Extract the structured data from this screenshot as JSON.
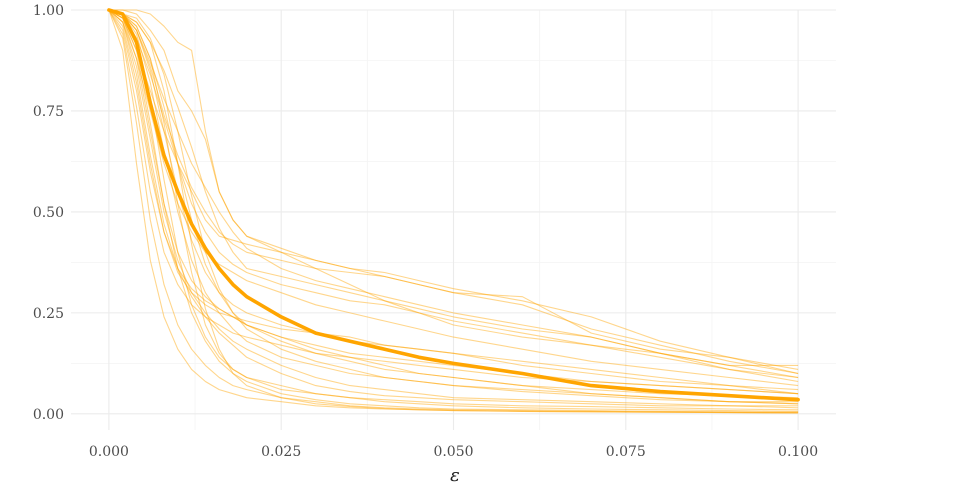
{
  "chart_data": {
    "type": "line",
    "title": "",
    "xlabel": "ε",
    "ylabel": "",
    "xlim": [
      -0.0055,
      0.1055
    ],
    "ylim": [
      -0.04,
      1.0
    ],
    "x_ticks": [
      "0.000",
      "0.025",
      "0.050",
      "0.075",
      "0.100"
    ],
    "x_tick_values": [
      0,
      0.025,
      0.05,
      0.075,
      0.1
    ],
    "y_ticks": [
      "0.00",
      "0.25",
      "0.50",
      "0.75",
      "1.00"
    ],
    "y_tick_values": [
      0,
      0.25,
      0.5,
      0.75,
      1.0
    ],
    "grid": true,
    "colors": {
      "mean": "#FFA500",
      "individual": "#FFA500",
      "grid": "#EBEBEB"
    },
    "x": [
      0.0,
      0.002,
      0.004,
      0.006,
      0.008,
      0.01,
      0.012,
      0.014,
      0.016,
      0.018,
      0.02,
      0.025,
      0.03,
      0.035,
      0.04,
      0.045,
      0.05,
      0.06,
      0.07,
      0.08,
      0.09,
      0.1
    ],
    "mean_series": {
      "values": [
        1.0,
        0.99,
        0.92,
        0.77,
        0.64,
        0.55,
        0.47,
        0.41,
        0.36,
        0.32,
        0.29,
        0.24,
        0.2,
        0.18,
        0.16,
        0.14,
        0.125,
        0.1,
        0.07,
        0.055,
        0.045,
        0.035
      ]
    },
    "series": [
      {
        "values": [
          1.0,
          1.0,
          1.0,
          0.99,
          0.96,
          0.92,
          0.9,
          0.7,
          0.55,
          0.48,
          0.44,
          0.41,
          0.38,
          0.36,
          0.34,
          0.32,
          0.3,
          0.29,
          0.2,
          0.16,
          0.14,
          0.11
        ]
      },
      {
        "values": [
          1.0,
          1.0,
          0.99,
          0.95,
          0.9,
          0.8,
          0.75,
          0.68,
          0.55,
          0.48,
          0.44,
          0.4,
          0.36,
          0.32,
          0.28,
          0.25,
          0.22,
          0.19,
          0.17,
          0.15,
          0.12,
          0.12
        ]
      },
      {
        "values": [
          1.0,
          0.98,
          0.9,
          0.8,
          0.7,
          0.62,
          0.55,
          0.48,
          0.44,
          0.43,
          0.42,
          0.4,
          0.38,
          0.36,
          0.35,
          0.33,
          0.31,
          0.28,
          0.24,
          0.18,
          0.14,
          0.1
        ]
      },
      {
        "values": [
          1.0,
          0.99,
          0.95,
          0.86,
          0.74,
          0.64,
          0.56,
          0.5,
          0.45,
          0.42,
          0.4,
          0.38,
          0.36,
          0.35,
          0.34,
          0.32,
          0.3,
          0.27,
          0.21,
          0.17,
          0.13,
          0.1
        ]
      },
      {
        "values": [
          1.0,
          0.99,
          0.97,
          0.92,
          0.85,
          0.76,
          0.66,
          0.55,
          0.46,
          0.4,
          0.36,
          0.34,
          0.32,
          0.3,
          0.28,
          0.26,
          0.24,
          0.21,
          0.19,
          0.15,
          0.11,
          0.08
        ]
      },
      {
        "values": [
          1.0,
          0.98,
          0.93,
          0.84,
          0.73,
          0.62,
          0.52,
          0.45,
          0.4,
          0.37,
          0.35,
          0.32,
          0.3,
          0.28,
          0.27,
          0.25,
          0.23,
          0.2,
          0.17,
          0.14,
          0.11,
          0.09
        ]
      },
      {
        "values": [
          1.0,
          0.97,
          0.88,
          0.75,
          0.62,
          0.52,
          0.45,
          0.4,
          0.37,
          0.35,
          0.33,
          0.3,
          0.27,
          0.25,
          0.23,
          0.21,
          0.19,
          0.16,
          0.13,
          0.11,
          0.09,
          0.07
        ]
      },
      {
        "values": [
          1.0,
          0.99,
          0.95,
          0.85,
          0.7,
          0.55,
          0.43,
          0.35,
          0.3,
          0.27,
          0.25,
          0.22,
          0.2,
          0.19,
          0.17,
          0.16,
          0.15,
          0.13,
          0.11,
          0.09,
          0.07,
          0.06
        ]
      },
      {
        "values": [
          1.0,
          0.96,
          0.82,
          0.62,
          0.45,
          0.35,
          0.3,
          0.27,
          0.25,
          0.24,
          0.23,
          0.21,
          0.2,
          0.18,
          0.17,
          0.16,
          0.15,
          0.12,
          0.1,
          0.08,
          0.07,
          0.05
        ]
      },
      {
        "values": [
          1.0,
          0.99,
          0.96,
          0.88,
          0.76,
          0.62,
          0.48,
          0.37,
          0.3,
          0.25,
          0.22,
          0.19,
          0.17,
          0.15,
          0.14,
          0.13,
          0.12,
          0.1,
          0.08,
          0.07,
          0.06,
          0.05
        ]
      },
      {
        "values": [
          1.0,
          0.95,
          0.8,
          0.6,
          0.45,
          0.36,
          0.31,
          0.28,
          0.26,
          0.24,
          0.22,
          0.18,
          0.15,
          0.13,
          0.11,
          0.1,
          0.09,
          0.07,
          0.05,
          0.04,
          0.03,
          0.025
        ]
      },
      {
        "values": [
          1.0,
          0.99,
          0.94,
          0.82,
          0.65,
          0.5,
          0.38,
          0.3,
          0.25,
          0.21,
          0.18,
          0.14,
          0.12,
          0.1,
          0.09,
          0.08,
          0.07,
          0.06,
          0.05,
          0.04,
          0.03,
          0.03
        ]
      },
      {
        "values": [
          1.0,
          0.97,
          0.86,
          0.68,
          0.5,
          0.38,
          0.3,
          0.25,
          0.21,
          0.18,
          0.16,
          0.12,
          0.09,
          0.07,
          0.06,
          0.05,
          0.04,
          0.035,
          0.03,
          0.025,
          0.02,
          0.02
        ]
      },
      {
        "values": [
          1.0,
          0.99,
          0.96,
          0.88,
          0.72,
          0.52,
          0.35,
          0.22,
          0.15,
          0.11,
          0.09,
          0.06,
          0.05,
          0.04,
          0.035,
          0.03,
          0.025,
          0.02,
          0.018,
          0.015,
          0.012,
          0.01
        ]
      },
      {
        "values": [
          1.0,
          0.98,
          0.9,
          0.72,
          0.52,
          0.36,
          0.25,
          0.18,
          0.13,
          0.1,
          0.08,
          0.05,
          0.035,
          0.025,
          0.02,
          0.015,
          0.012,
          0.01,
          0.008,
          0.006,
          0.005,
          0.004
        ]
      },
      {
        "values": [
          1.0,
          0.93,
          0.72,
          0.48,
          0.32,
          0.22,
          0.16,
          0.12,
          0.09,
          0.07,
          0.06,
          0.04,
          0.03,
          0.02,
          0.015,
          0.012,
          0.01,
          0.008,
          0.006,
          0.005,
          0.004,
          0.003
        ]
      },
      {
        "values": [
          1.0,
          0.99,
          0.97,
          0.92,
          0.8,
          0.62,
          0.42,
          0.26,
          0.16,
          0.1,
          0.07,
          0.04,
          0.025,
          0.018,
          0.013,
          0.01,
          0.008,
          0.006,
          0.005,
          0.004,
          0.003,
          0.002
        ]
      },
      {
        "values": [
          1.0,
          0.9,
          0.62,
          0.38,
          0.24,
          0.16,
          0.11,
          0.08,
          0.06,
          0.05,
          0.04,
          0.03,
          0.02,
          0.015,
          0.012,
          0.01,
          0.008,
          0.006,
          0.005,
          0.004,
          0.003,
          0.002
        ]
      },
      {
        "values": [
          1.0,
          0.99,
          0.93,
          0.78,
          0.58,
          0.4,
          0.27,
          0.19,
          0.14,
          0.11,
          0.09,
          0.07,
          0.05,
          0.04,
          0.03,
          0.025,
          0.02,
          0.015,
          0.012,
          0.01,
          0.008,
          0.006
        ]
      },
      {
        "values": [
          1.0,
          0.98,
          0.88,
          0.7,
          0.52,
          0.4,
          0.33,
          0.29,
          0.26,
          0.24,
          0.22,
          0.19,
          0.16,
          0.14,
          0.12,
          0.1,
          0.09,
          0.07,
          0.06,
          0.05,
          0.045,
          0.04
        ]
      },
      {
        "values": [
          1.0,
          0.99,
          0.95,
          0.87,
          0.78,
          0.7,
          0.62,
          0.56,
          0.5,
          0.45,
          0.41,
          0.36,
          0.33,
          0.31,
          0.29,
          0.27,
          0.25,
          0.22,
          0.19,
          0.15,
          0.12,
          0.09
        ]
      },
      {
        "values": [
          1.0,
          0.97,
          0.84,
          0.64,
          0.47,
          0.36,
          0.29,
          0.24,
          0.2,
          0.17,
          0.14,
          0.1,
          0.07,
          0.055,
          0.045,
          0.04,
          0.035,
          0.03,
          0.025,
          0.02,
          0.02,
          0.015
        ]
      },
      {
        "values": [
          1.0,
          0.99,
          0.98,
          0.93,
          0.84,
          0.7,
          0.54,
          0.4,
          0.31,
          0.25,
          0.21,
          0.16,
          0.13,
          0.11,
          0.09,
          0.08,
          0.07,
          0.055,
          0.045,
          0.035,
          0.03,
          0.025
        ]
      },
      {
        "values": [
          1.0,
          0.94,
          0.76,
          0.55,
          0.4,
          0.32,
          0.27,
          0.24,
          0.22,
          0.2,
          0.19,
          0.17,
          0.15,
          0.14,
          0.13,
          0.12,
          0.11,
          0.09,
          0.08,
          0.07,
          0.06,
          0.05
        ]
      }
    ]
  }
}
